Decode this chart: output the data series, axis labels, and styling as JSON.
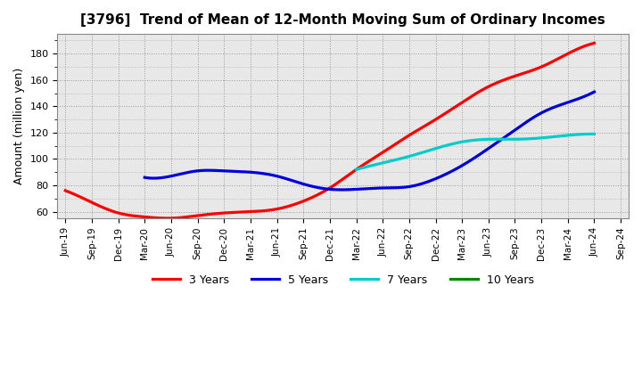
{
  "title": "[3796]  Trend of Mean of 12-Month Moving Sum of Ordinary Incomes",
  "ylabel": "Amount (million yen)",
  "background_color": "#ffffff",
  "plot_bg_color": "#e8e8e8",
  "grid_color": "#999999",
  "ylim": [
    55,
    195
  ],
  "yticks": [
    60,
    80,
    100,
    120,
    140,
    160,
    180
  ],
  "x_labels": [
    "Jun-19",
    "Sep-19",
    "Dec-19",
    "Mar-20",
    "Jun-20",
    "Sep-20",
    "Dec-20",
    "Mar-21",
    "Jun-21",
    "Sep-21",
    "Dec-21",
    "Mar-22",
    "Jun-22",
    "Sep-22",
    "Dec-22",
    "Mar-23",
    "Jun-23",
    "Sep-23",
    "Dec-23",
    "Mar-24",
    "Jun-24",
    "Sep-24"
  ],
  "series": {
    "3 Years": {
      "color": "#ff0000",
      "x_indices": [
        0,
        1,
        2,
        3,
        4,
        5,
        6,
        7,
        8,
        9,
        10,
        11,
        12,
        13,
        14,
        15,
        16,
        17,
        18,
        19,
        20
      ],
      "y": [
        76,
        67,
        59,
        56,
        55,
        57,
        59,
        60,
        62,
        68,
        78,
        92,
        105,
        118,
        130,
        143,
        155,
        163,
        170,
        180,
        188
      ]
    },
    "5 Years": {
      "color": "#0000dd",
      "x_indices": [
        3,
        4,
        5,
        6,
        7,
        8,
        9,
        10,
        11,
        12,
        13,
        14,
        15,
        16,
        17,
        18,
        19,
        20
      ],
      "y": [
        86,
        87,
        91,
        91,
        90,
        87,
        81,
        77,
        77,
        78,
        79,
        85,
        95,
        108,
        122,
        135,
        143,
        151
      ]
    },
    "7 Years": {
      "color": "#00cccc",
      "x_indices": [
        11,
        12,
        13,
        14,
        15,
        16,
        17,
        18,
        19,
        20
      ],
      "y": [
        92,
        97,
        102,
        108,
        113,
        115,
        115,
        116,
        118,
        119
      ]
    },
    "10 Years": {
      "color": "#008800",
      "x_indices": [],
      "y": []
    }
  },
  "legend_labels": [
    "3 Years",
    "5 Years",
    "7 Years",
    "10 Years"
  ],
  "legend_colors": [
    "#ff0000",
    "#0000dd",
    "#00cccc",
    "#008800"
  ]
}
